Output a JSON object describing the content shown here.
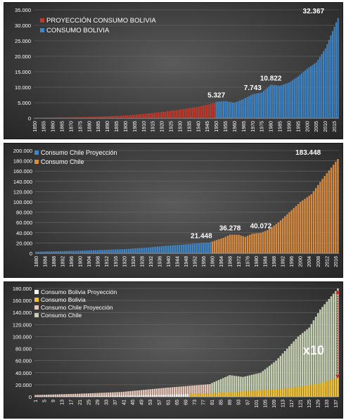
{
  "chart_data": [
    {
      "type": "bar",
      "legend": [
        {
          "label": "PROYECCIÓN CONSUMO BOLIVIA",
          "color": "#c0392b"
        },
        {
          "label": "CONSUMO BOLIVIA",
          "color": "#3f86c8"
        }
      ],
      "legend_position": "top-left",
      "yticks": [
        "0",
        "5.000",
        "10.000",
        "15.000",
        "20.000",
        "25.000",
        "30.000",
        "35.000"
      ],
      "ylim": [
        0,
        35000
      ],
      "xticks": [
        "1850",
        "1855",
        "1860",
        "1865",
        "1870",
        "1875",
        "1880",
        "1885",
        "1890",
        "1895",
        "1900",
        "1905",
        "1910",
        "1915",
        "1920",
        "1925",
        "1930",
        "1935",
        "1940",
        "1945",
        "1950",
        "1955",
        "1960",
        "1965",
        "1970",
        "1975",
        "1980",
        "1985",
        "1990",
        "1995",
        "2000",
        "2005",
        "2010",
        "2015"
      ],
      "xlim": [
        1850,
        2017
      ],
      "grid": true,
      "series": [
        {
          "name": "PROYECCIÓN CONSUMO BOLIVIA",
          "color": "#c0392b",
          "points": [
            [
              1850,
              180
            ],
            [
              1870,
              320
            ],
            [
              1890,
              600
            ],
            [
              1900,
              900
            ],
            [
              1910,
              1400
            ],
            [
              1920,
              2000
            ],
            [
              1930,
              2800
            ],
            [
              1940,
              3700
            ],
            [
              1949,
              4900
            ]
          ]
        },
        {
          "name": "CONSUMO BOLIVIA",
          "color": "#3f86c8",
          "points": [
            [
              1950,
              5327
            ],
            [
              1955,
              5500
            ],
            [
              1960,
              5000
            ],
            [
              1965,
              6200
            ],
            [
              1970,
              7743
            ],
            [
              1975,
              8300
            ],
            [
              1980,
              10822
            ],
            [
              1985,
              10500
            ],
            [
              1990,
              11500
            ],
            [
              1995,
              13500
            ],
            [
              2000,
              16000
            ],
            [
              2005,
              18000
            ],
            [
              2010,
              22500
            ],
            [
              2017,
              32367
            ]
          ]
        }
      ],
      "annotations": [
        {
          "x": 1950,
          "y": 5327,
          "label": "5.327"
        },
        {
          "x": 1970,
          "y": 7743,
          "label": "7.743"
        },
        {
          "x": 1980,
          "y": 10822,
          "label": "10.822"
        },
        {
          "x": 2010,
          "y": 32367,
          "label": "32.367"
        }
      ]
    },
    {
      "type": "bar",
      "legend": [
        {
          "label": "Consumo Chile Proyección",
          "color": "#3f86c8"
        },
        {
          "label": "Consumo Chile",
          "color": "#d98b3f"
        }
      ],
      "legend_position": "top-left",
      "yticks": [
        "0",
        "20.000",
        "40.000",
        "60.000",
        "80.000",
        "100.000",
        "120.000",
        "140.000",
        "160.000",
        "180.000",
        "200.000"
      ],
      "ylim": [
        0,
        200000
      ],
      "xticks": [
        "1880",
        "1884",
        "1888",
        "1892",
        "1896",
        "1900",
        "1904",
        "1908",
        "1912",
        "1916",
        "1920",
        "1924",
        "1928",
        "1932",
        "1936",
        "1940",
        "1944",
        "1948",
        "1952",
        "1956",
        "1960",
        "1964",
        "1968",
        "1972",
        "1976",
        "1980",
        "1984",
        "1988",
        "1992",
        "1996",
        "2000",
        "2004",
        "2008",
        "2012",
        "2016"
      ],
      "xlim": [
        1880,
        2017
      ],
      "grid": true,
      "series": [
        {
          "name": "Consumo Chile Proyección",
          "color": "#3f86c8",
          "points": [
            [
              1880,
              3000
            ],
            [
              1900,
              5000
            ],
            [
              1920,
              8000
            ],
            [
              1930,
              11000
            ],
            [
              1940,
              15000
            ],
            [
              1950,
              18000
            ],
            [
              1959,
              21448
            ]
          ]
        },
        {
          "name": "Consumo Chile",
          "color": "#d98b3f",
          "points": [
            [
              1960,
              23000
            ],
            [
              1965,
              30000
            ],
            [
              1968,
              36278
            ],
            [
              1972,
              36000
            ],
            [
              1975,
              32000
            ],
            [
              1978,
              38000
            ],
            [
              1982,
              40072
            ],
            [
              1985,
              45000
            ],
            [
              1990,
              60000
            ],
            [
              1995,
              80000
            ],
            [
              2000,
              100000
            ],
            [
              2005,
              115000
            ],
            [
              2010,
              145000
            ],
            [
              2017,
              183448
            ]
          ]
        }
      ],
      "annotations": [
        {
          "x": 1955,
          "y": 21448,
          "label": "21.448"
        },
        {
          "x": 1968,
          "y": 36278,
          "label": "36.278"
        },
        {
          "x": 1982,
          "y": 40072,
          "label": "40.072"
        },
        {
          "x": 2014,
          "y": 183448,
          "label": "183.448"
        }
      ]
    },
    {
      "type": "bar",
      "legend": [
        {
          "label": "Consumo Bolivia Proyección",
          "color": "#f2f2f2"
        },
        {
          "label": "Consumo Bolivia",
          "color": "#f2c12e"
        },
        {
          "label": "Consumo Chile Proyección",
          "color": "#e8c7b8"
        },
        {
          "label": "Consumo Chile",
          "color": "#c5d1b2"
        }
      ],
      "legend_position": "top-left",
      "yticks": [
        "0",
        "20.000",
        "40.000",
        "60.000",
        "80.000",
        "100.000",
        "120.000",
        "140.000",
        "160.000",
        "180.000"
      ],
      "ylim": [
        0,
        180000
      ],
      "xticks": [
        "1",
        "5",
        "9",
        "13",
        "17",
        "21",
        "25",
        "29",
        "33",
        "37",
        "41",
        "45",
        "49",
        "53",
        "57",
        "61",
        "65",
        "69",
        "73",
        "77",
        "81",
        "85",
        "89",
        "93",
        "97",
        "101",
        "105",
        "109",
        "113",
        "117",
        "121",
        "125",
        "129",
        "133",
        "137"
      ],
      "xlim": [
        1,
        138
      ],
      "grid": true,
      "series": [
        {
          "name": "Consumo Bolivia Proyección",
          "color": "#f2f2f2",
          "points": [
            [
              1,
              300
            ],
            [
              20,
              900
            ],
            [
              40,
              2000
            ],
            [
              60,
              3500
            ],
            [
              70,
              4500
            ]
          ]
        },
        {
          "name": "Consumo Bolivia",
          "color": "#f2c12e",
          "points": [
            [
              71,
              5300
            ],
            [
              80,
              6000
            ],
            [
              90,
              7700
            ],
            [
              100,
              10800
            ],
            [
              110,
              12000
            ],
            [
              120,
              16500
            ],
            [
              130,
              22500
            ],
            [
              138,
              32000
            ]
          ]
        },
        {
          "name": "Consumo Chile Proyección",
          "color": "#e8c7b8",
          "points": [
            [
              1,
              3000
            ],
            [
              20,
              5000
            ],
            [
              40,
              8000
            ],
            [
              60,
              15000
            ],
            [
              80,
              21000
            ]
          ]
        },
        {
          "name": "Consumo Chile",
          "color": "#c5d1b2",
          "points": [
            [
              81,
              23000
            ],
            [
              89,
              36000
            ],
            [
              95,
              33000
            ],
            [
              103,
              40000
            ],
            [
              110,
              60000
            ],
            [
              115,
              80000
            ],
            [
              120,
              100000
            ],
            [
              125,
              115000
            ],
            [
              130,
              145000
            ],
            [
              138,
              180000
            ]
          ]
        }
      ],
      "annotations": [
        {
          "x": 127,
          "y": 70000,
          "label": "x10"
        }
      ]
    }
  ]
}
